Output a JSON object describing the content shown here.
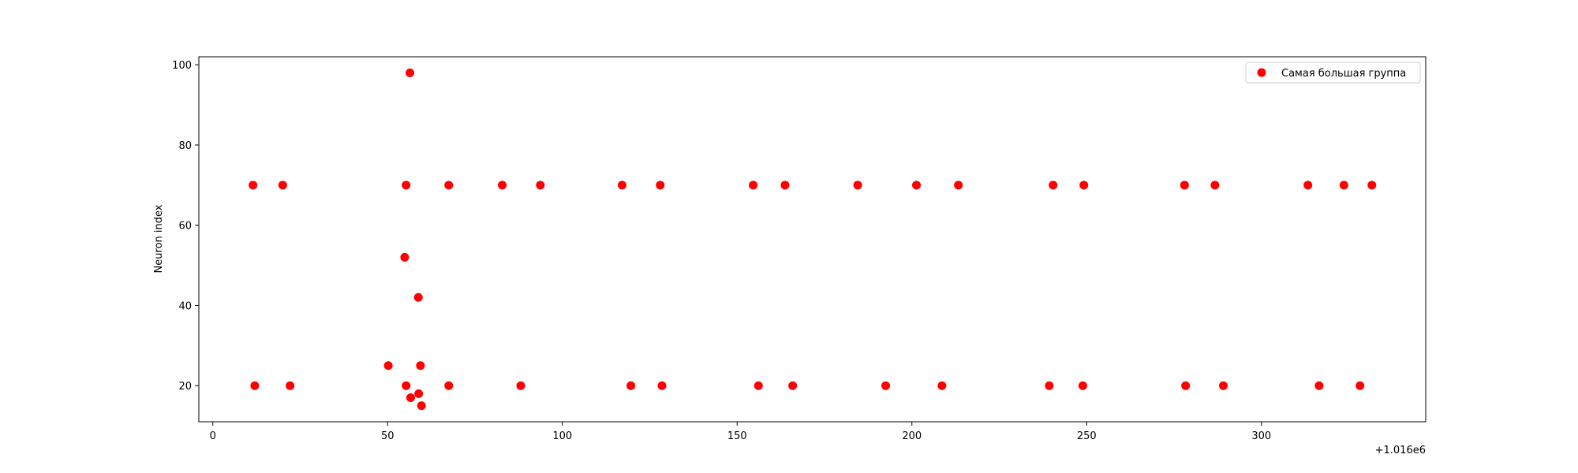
{
  "chart_data": {
    "type": "scatter",
    "title": "",
    "xlabel": "",
    "ylabel": "Neuron index",
    "x_offset_label": "+1.016e6",
    "xlim": [
      -4,
      347
    ],
    "ylim": [
      11,
      102
    ],
    "x_ticks": [
      0,
      50,
      100,
      150,
      200,
      250,
      300
    ],
    "y_ticks": [
      20,
      40,
      60,
      80,
      100
    ],
    "grid": false,
    "legend_position": "top-right",
    "colors": {
      "series": "#ff0000",
      "axis": "#000000",
      "legend_border": "#cccccc"
    },
    "series": [
      {
        "name": "Самая большая группа",
        "color": "#ff0000",
        "points": [
          [
            11.5,
            70
          ],
          [
            20.0,
            70
          ],
          [
            55.3,
            70
          ],
          [
            67.5,
            70
          ],
          [
            82.8,
            70
          ],
          [
            93.7,
            70
          ],
          [
            117.1,
            70
          ],
          [
            128.0,
            70
          ],
          [
            154.6,
            70
          ],
          [
            163.7,
            70
          ],
          [
            184.5,
            70
          ],
          [
            201.3,
            70
          ],
          [
            213.3,
            70
          ],
          [
            240.4,
            70
          ],
          [
            249.2,
            70
          ],
          [
            278.0,
            70
          ],
          [
            286.7,
            70
          ],
          [
            313.3,
            70
          ],
          [
            323.6,
            70
          ],
          [
            331.6,
            70
          ],
          [
            56.4,
            98
          ],
          [
            54.9,
            52
          ],
          [
            58.8,
            42
          ],
          [
            50.2,
            25
          ],
          [
            59.4,
            25
          ],
          [
            12.0,
            20
          ],
          [
            22.1,
            20
          ],
          [
            55.3,
            20
          ],
          [
            67.5,
            20
          ],
          [
            88.1,
            20
          ],
          [
            119.6,
            20
          ],
          [
            128.5,
            20
          ],
          [
            156.1,
            20
          ],
          [
            165.9,
            20
          ],
          [
            192.5,
            20
          ],
          [
            208.6,
            20
          ],
          [
            239.3,
            20
          ],
          [
            248.9,
            20
          ],
          [
            278.3,
            20
          ],
          [
            289.1,
            20
          ],
          [
            316.5,
            20
          ],
          [
            328.2,
            20
          ],
          [
            58.9,
            18
          ],
          [
            56.6,
            17
          ],
          [
            59.7,
            15
          ]
        ]
      }
    ]
  }
}
